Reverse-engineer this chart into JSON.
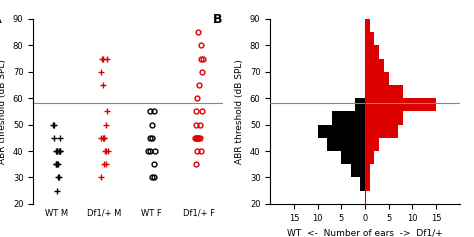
{
  "panel_A_label": "A",
  "panel_B_label": "B",
  "ylim": [
    20,
    90
  ],
  "yticks": [
    20,
    30,
    40,
    50,
    60,
    70,
    80,
    90
  ],
  "hline_y": 58,
  "ylabel": "ABR threshold (dB SPL)",
  "groups": [
    "WT M",
    "Df1/+ M",
    "WT F",
    "Df1/+ F"
  ],
  "wt_m_data": [
    25,
    30,
    30,
    35,
    35,
    35,
    35,
    40,
    40,
    40,
    40,
    40,
    40,
    45,
    45,
    50,
    50
  ],
  "df1_m_data": [
    30,
    35,
    35,
    40,
    40,
    40,
    45,
    45,
    45,
    45,
    50,
    55,
    65,
    70,
    75,
    75,
    75
  ],
  "wt_f_data": [
    30,
    30,
    35,
    40,
    40,
    40,
    45,
    45,
    50,
    55,
    55
  ],
  "df1_f_data": [
    35,
    40,
    40,
    45,
    45,
    45,
    45,
    45,
    45,
    50,
    50,
    55,
    55,
    60,
    65,
    70,
    75,
    75,
    80,
    85
  ],
  "hist_bin_edges": [
    20,
    25,
    30,
    35,
    40,
    45,
    50,
    55,
    60,
    65,
    70,
    75,
    80,
    85,
    90
  ],
  "wt_hist_counts": [
    0,
    1,
    3,
    5,
    8,
    10,
    7,
    2,
    0,
    0,
    0,
    0,
    0,
    0
  ],
  "df1_hist_counts": [
    0,
    1,
    1,
    2,
    3,
    7,
    8,
    15,
    8,
    5,
    4,
    3,
    2,
    1
  ],
  "wt_color": "#000000",
  "df1_color": "#dd0000",
  "hline_color": "#888888",
  "vline_color": "#dd0000",
  "xlim_B": [
    -20,
    20
  ],
  "xticks_B": [
    -15,
    -10,
    -5,
    0,
    5,
    10,
    15
  ],
  "xticklabels_B": [
    "15",
    "10",
    "5",
    "0",
    "5",
    "10",
    "15"
  ],
  "xlabel_B": "WT  <-  Number of ears  ->  Df1/+",
  "background_color": "white",
  "tick_fontsize": 6,
  "label_fontsize": 6.5,
  "panel_label_fontsize": 9,
  "jitter_seeds": [
    0,
    7,
    14,
    21
  ],
  "jitter_scale": 0.08
}
